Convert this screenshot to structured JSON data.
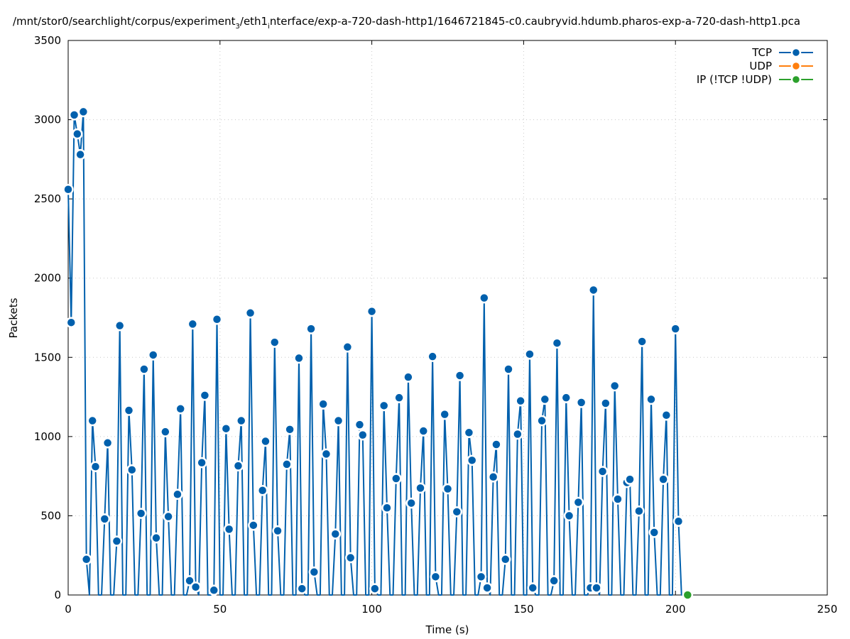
{
  "chart_data": {
    "type": "line",
    "title_parts": {
      "before_sub": "/mnt/stor0/searchlight/corpus/experiment",
      "sub": "3",
      "middle": "/eth1",
      "sub2": "i",
      "after_sub": "nterface/exp-a-720-dash-http1/1646721845-c0.caubryvid.hdumb.pharos-exp-a-720-dash-http1.pca"
    },
    "xlabel": "Time (s)",
    "ylabel": "Packets",
    "xlim": [
      0,
      250
    ],
    "ylim": [
      0,
      3500
    ],
    "xticks": [
      "0",
      "50",
      "100",
      "150",
      "200",
      "250"
    ],
    "yticks": [
      "0",
      "500",
      "1000",
      "1500",
      "2000",
      "2500",
      "3000",
      "3500"
    ],
    "grid": true,
    "legend_position": "top-right",
    "series": [
      {
        "name": "TCP",
        "color": "#0060ad",
        "x": [
          0,
          1,
          2,
          3,
          4,
          5,
          6,
          7,
          8,
          9,
          10,
          11,
          12,
          13,
          14,
          15,
          16,
          17,
          18,
          19,
          20,
          21,
          22,
          23,
          24,
          25,
          26,
          27,
          28,
          29,
          30,
          31,
          32,
          33,
          34,
          35,
          36,
          37,
          38,
          39,
          40,
          41,
          42,
          43,
          44,
          45,
          46,
          47,
          48,
          49,
          50,
          51,
          52,
          53,
          54,
          55,
          56,
          57,
          58,
          59,
          60,
          61,
          62,
          63,
          64,
          65,
          66,
          67,
          68,
          69,
          70,
          71,
          72,
          73,
          74,
          75,
          76,
          77,
          78,
          79,
          80,
          81,
          82,
          83,
          84,
          85,
          86,
          87,
          88,
          89,
          90,
          91,
          92,
          93,
          94,
          95,
          96,
          97,
          98,
          99,
          100,
          101,
          102,
          103,
          104,
          105,
          106,
          107,
          108,
          109,
          110,
          111,
          112,
          113,
          114,
          115,
          116,
          117,
          118,
          119,
          120,
          121,
          122,
          123,
          124,
          125,
          126,
          127,
          128,
          129,
          130,
          131,
          132,
          133,
          134,
          135,
          136,
          137,
          138,
          139,
          140,
          141,
          142,
          143,
          144,
          145,
          146,
          147,
          148,
          149,
          150,
          151,
          152,
          153,
          154,
          155,
          156,
          157,
          158,
          159,
          160,
          161,
          162,
          163,
          164,
          165,
          166,
          167,
          168,
          169,
          170,
          171,
          172,
          173,
          174,
          175,
          176,
          177,
          178,
          179,
          180,
          181,
          182,
          183,
          184,
          185,
          186,
          187,
          188,
          189,
          190,
          191,
          192,
          193,
          194,
          195,
          196,
          197,
          198,
          199,
          200,
          201,
          202,
          203
        ],
        "y": [
          2560,
          1720,
          3030,
          2910,
          2780,
          3050,
          225,
          0,
          1100,
          810,
          0,
          0,
          480,
          960,
          0,
          0,
          340,
          1700,
          0,
          0,
          1165,
          790,
          0,
          0,
          515,
          1425,
          0,
          0,
          1515,
          360,
          0,
          0,
          1030,
          495,
          0,
          0,
          635,
          1175,
          0,
          0,
          90,
          1710,
          50,
          0,
          835,
          1260,
          0,
          0,
          30,
          1740,
          0,
          0,
          1050,
          415,
          0,
          0,
          815,
          1100,
          0,
          0,
          1780,
          440,
          0,
          0,
          660,
          970,
          0,
          0,
          1595,
          405,
          0,
          0,
          825,
          1045,
          0,
          0,
          1495,
          40,
          0,
          0,
          1680,
          145,
          0,
          0,
          1205,
          890,
          0,
          0,
          385,
          1100,
          0,
          0,
          1565,
          235,
          0,
          0,
          1075,
          1010,
          0,
          0,
          1790,
          40,
          0,
          0,
          1195,
          550,
          0,
          0,
          735,
          1245,
          0,
          0,
          1375,
          580,
          0,
          0,
          675,
          1035,
          0,
          0,
          1505,
          115,
          0,
          0,
          1140,
          670,
          0,
          0,
          525,
          1385,
          0,
          0,
          1025,
          850,
          0,
          0,
          115,
          1875,
          45,
          0,
          745,
          950,
          0,
          0,
          225,
          1425,
          0,
          0,
          1015,
          1225,
          0,
          0,
          1520,
          45,
          0,
          0,
          1100,
          1235,
          0,
          0,
          90,
          1590,
          0,
          0,
          1245,
          500,
          0,
          0,
          585,
          1215,
          0,
          0,
          45,
          1925,
          45,
          0,
          780,
          1210,
          0,
          0,
          1320,
          605,
          0,
          0,
          710,
          730,
          0,
          0,
          530,
          1600,
          0,
          0,
          1235,
          395,
          0,
          0,
          730,
          1135,
          0,
          0,
          1680,
          465,
          0,
          0
        ],
        "markers_hidden_at_zero": true
      },
      {
        "name": "UDP",
        "color": "#ff7f0e",
        "x": [],
        "y": []
      },
      {
        "name": "IP (!TCP  !UDP)",
        "color": "#2ca02c",
        "x": [
          204
        ],
        "y": [
          0
        ]
      }
    ]
  }
}
